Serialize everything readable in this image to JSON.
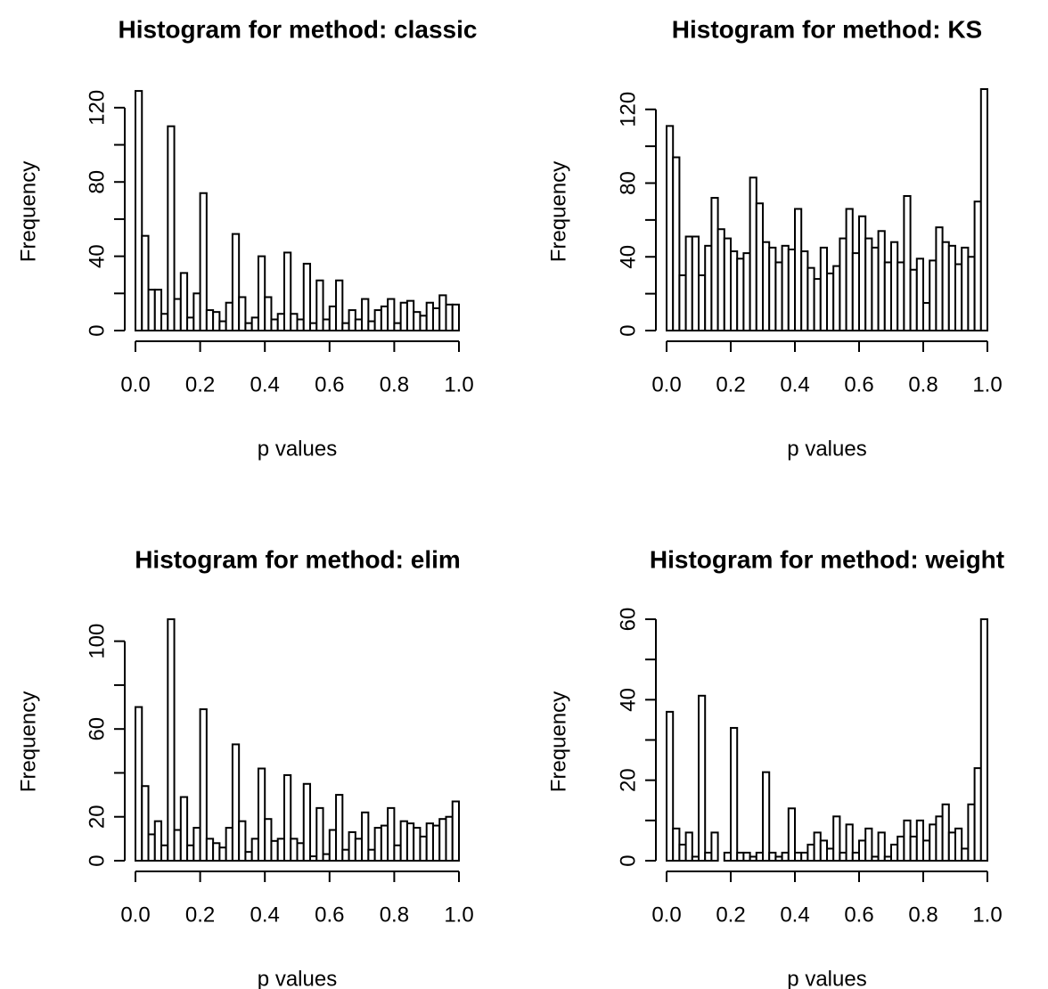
{
  "chart_data": [
    {
      "type": "bar",
      "title": "Histogram for method: classic",
      "xlabel": "p values",
      "ylabel": "Frequency",
      "bin_width": 0.02,
      "xlim": [
        0,
        1
      ],
      "ylim": [
        0,
        130
      ],
      "x_ticks": [
        "0.0",
        "0.2",
        "0.4",
        "0.6",
        "0.8",
        "1.0"
      ],
      "y_ticks": [
        0,
        40,
        80,
        120
      ],
      "y_minor_ticks": [
        20,
        60,
        100
      ],
      "values": [
        129,
        51,
        22,
        22,
        9,
        110,
        17,
        31,
        7,
        20,
        74,
        11,
        10,
        5,
        15,
        52,
        18,
        4,
        7,
        40,
        18,
        6,
        9,
        42,
        9,
        6,
        36,
        4,
        27,
        6,
        13,
        27,
        4,
        11,
        6,
        17,
        5,
        11,
        13,
        17,
        4,
        15,
        16,
        10,
        8,
        15,
        12,
        19,
        14,
        14
      ]
    },
    {
      "type": "bar",
      "title": "Histogram for method: KS",
      "xlabel": "p values",
      "ylabel": "Frequency",
      "bin_width": 0.02,
      "xlim": [
        0,
        1
      ],
      "ylim": [
        0,
        131
      ],
      "x_ticks": [
        "0.0",
        "0.2",
        "0.4",
        "0.6",
        "0.8",
        "1.0"
      ],
      "y_ticks": [
        0,
        40,
        80,
        120
      ],
      "y_minor_ticks": [
        20,
        60,
        100
      ],
      "values": [
        111,
        94,
        30,
        51,
        51,
        30,
        46,
        72,
        55,
        50,
        43,
        39,
        42,
        83,
        69,
        48,
        45,
        37,
        46,
        44,
        66,
        43,
        34,
        28,
        45,
        31,
        35,
        50,
        66,
        42,
        62,
        50,
        45,
        54,
        37,
        48,
        37,
        73,
        33,
        39,
        15,
        38,
        56,
        48,
        46,
        36,
        45,
        40,
        70,
        131
      ]
    },
    {
      "type": "bar",
      "title": "Histogram for method: elim",
      "xlabel": "p values",
      "ylabel": "Frequency",
      "bin_width": 0.02,
      "xlim": [
        0,
        1
      ],
      "ylim": [
        0,
        110
      ],
      "x_ticks": [
        "0.0",
        "0.2",
        "0.4",
        "0.6",
        "0.8",
        "1.0"
      ],
      "y_ticks": [
        0,
        20,
        60,
        100
      ],
      "y_minor_ticks": [
        40,
        80
      ],
      "values": [
        70,
        34,
        12,
        18,
        7,
        110,
        14,
        29,
        7,
        15,
        69,
        10,
        8,
        6,
        15,
        53,
        18,
        4,
        10,
        42,
        19,
        9,
        10,
        39,
        10,
        8,
        35,
        2,
        24,
        3,
        14,
        30,
        5,
        13,
        10,
        22,
        5,
        15,
        16,
        24,
        7,
        18,
        17,
        15,
        11,
        17,
        16,
        19,
        20,
        27
      ]
    },
    {
      "type": "bar",
      "title": "Histogram for method: weight",
      "xlabel": "p values",
      "ylabel": "Frequency",
      "bin_width": 0.02,
      "xlim": [
        0,
        1
      ],
      "ylim": [
        0,
        60
      ],
      "x_ticks": [
        "0.0",
        "0.2",
        "0.4",
        "0.6",
        "0.8",
        "1.0"
      ],
      "y_ticks": [
        0,
        20,
        40,
        60
      ],
      "y_minor_ticks": [
        10,
        30,
        50
      ],
      "values": [
        37,
        8,
        4,
        7,
        1,
        41,
        2,
        7,
        0,
        2,
        33,
        2,
        2,
        1,
        2,
        22,
        2,
        1,
        2,
        13,
        2,
        2,
        4,
        7,
        5,
        3,
        11,
        2,
        9,
        2,
        5,
        8,
        1,
        7,
        1,
        4,
        6,
        10,
        6,
        10,
        5,
        9,
        11,
        14,
        7,
        8,
        3,
        14,
        23,
        60
      ]
    }
  ]
}
